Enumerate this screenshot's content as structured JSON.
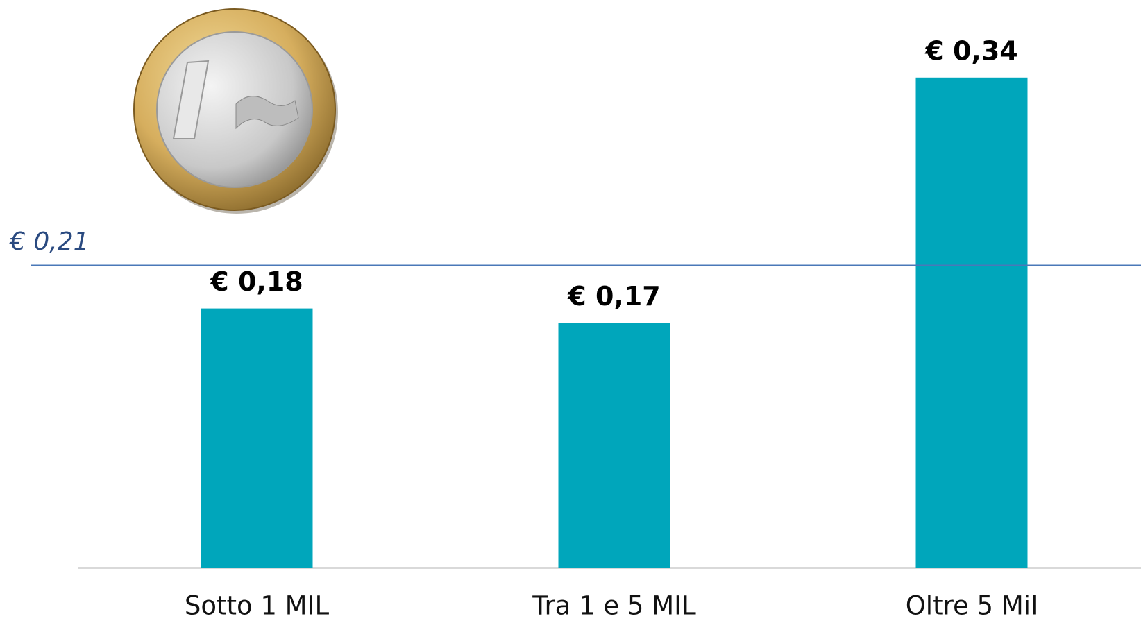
{
  "chart_data": {
    "type": "bar",
    "categories": [
      "Sotto 1 MIL",
      "Tra 1 e 5 MIL",
      "Oltre 5 Mil"
    ],
    "values": [
      0.18,
      0.17,
      0.34
    ],
    "value_labels": [
      "€ 0,18",
      "€ 0,17",
      "€ 0,34"
    ],
    "color": "#00a6bb",
    "reference_line": {
      "value": 0.21,
      "label": "€ 0,21",
      "color": "#4a78b8"
    }
  }
}
